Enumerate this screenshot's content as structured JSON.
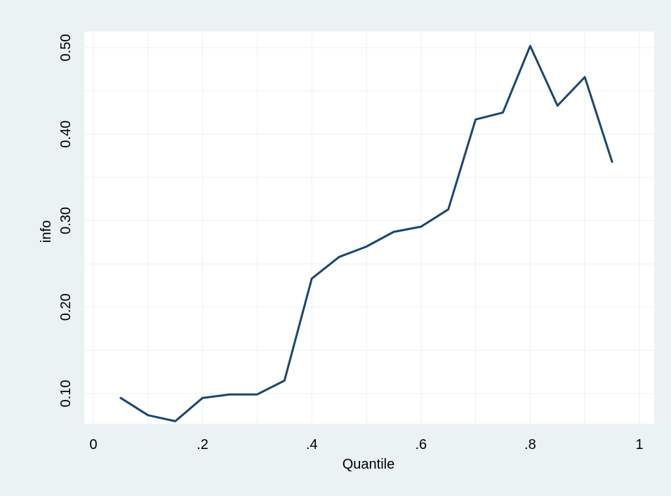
{
  "chart_data": {
    "type": "line",
    "title": "",
    "xlabel": "Quantile",
    "ylabel": "info",
    "xlim": [
      0,
      1
    ],
    "ylim": [
      0.05,
      0.5
    ],
    "grid": true,
    "legend": "none",
    "x_ticks": [
      {
        "value": 0,
        "label": "0"
      },
      {
        "value": 0.2,
        "label": ".2"
      },
      {
        "value": 0.4,
        "label": ".4"
      },
      {
        "value": 0.6,
        "label": ".6"
      },
      {
        "value": 0.8,
        "label": ".8"
      },
      {
        "value": 1,
        "label": "1"
      }
    ],
    "y_ticks": [
      {
        "value": 0.1,
        "label": "0.10"
      },
      {
        "value": 0.2,
        "label": "0.20"
      },
      {
        "value": 0.3,
        "label": "0.30"
      },
      {
        "value": 0.4,
        "label": "0.40"
      },
      {
        "value": 0.5,
        "label": "0.50"
      }
    ],
    "series": [
      {
        "x": [
          0.05,
          0.1,
          0.15,
          0.2,
          0.25,
          0.3,
          0.35,
          0.4,
          0.45,
          0.5,
          0.55,
          0.6,
          0.65,
          0.7,
          0.75,
          0.8,
          0.85,
          0.9,
          0.95
        ],
        "values": [
          0.095,
          0.075,
          0.068,
          0.095,
          0.099,
          0.099,
          0.115,
          0.233,
          0.258,
          0.27,
          0.287,
          0.293,
          0.313,
          0.417,
          0.425,
          0.502,
          0.433,
          0.466,
          0.368
        ]
      }
    ],
    "colors": {
      "line": "#1a476f",
      "outer_background": "#eaf2f3",
      "plot_background": "#ffffff",
      "grid": "#eaf2f3"
    }
  }
}
